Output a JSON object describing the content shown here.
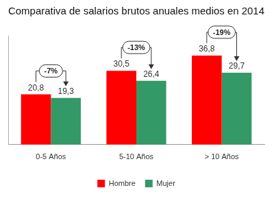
{
  "chart_data": {
    "type": "bar",
    "title": "Comparativa de salarios brutos anuales medios en 2014",
    "categories": [
      "0-5 Años",
      "5-10 Años",
      "> 10 Años"
    ],
    "series": [
      {
        "name": "Hombre",
        "color": "#ff0000",
        "values": [
          20.8,
          30.5,
          36.8
        ],
        "value_labels": [
          "20,8",
          "30,5",
          "36,8"
        ]
      },
      {
        "name": "Mujer",
        "color": "#339966",
        "values": [
          19.3,
          26.4,
          29.7
        ],
        "value_labels": [
          "19,3",
          "26,4",
          "29,7"
        ]
      }
    ],
    "annotations": [
      {
        "category": "0-5 Años",
        "text": "-7%"
      },
      {
        "category": "5-10 Años",
        "text": "-13%"
      },
      {
        "category": "> 10 Años",
        "text": "-19%"
      }
    ],
    "ylim": [
      0,
      45
    ],
    "grid": false,
    "legend": "bottom",
    "data_labels": true,
    "tick_labels": "x"
  }
}
